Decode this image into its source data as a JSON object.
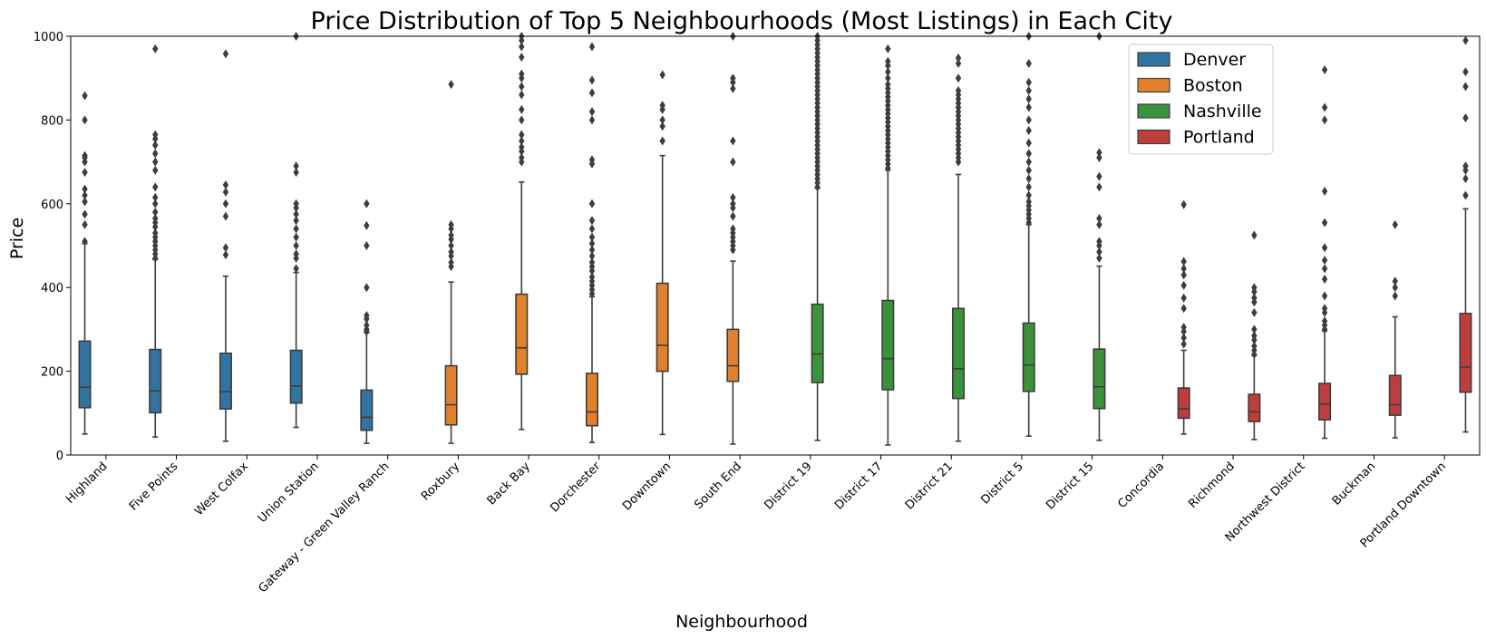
{
  "chart_data": {
    "type": "box",
    "title": "Price Distribution of Top 5 Neighbourhoods (Most Listings) in Each City",
    "xlabel": "Neighbourhood",
    "ylabel": "Price",
    "ylim": [
      0,
      1000
    ],
    "yticks": [
      0,
      200,
      400,
      600,
      800,
      1000
    ],
    "legend_position": "top-right",
    "series": [
      {
        "name": "Denver",
        "color": "#3274a1"
      },
      {
        "name": "Boston",
        "color": "#e1812c"
      },
      {
        "name": "Nashville",
        "color": "#3a923a"
      },
      {
        "name": "Portland",
        "color": "#c03d3e"
      }
    ],
    "categories": [
      "Highland",
      "Five Points",
      "West Colfax",
      "Union Station",
      "Gateway - Green Valley Ranch",
      "Roxbury",
      "Back Bay",
      "Dorchester",
      "Downtown",
      "South End",
      "District 19",
      "District 17",
      "District 21",
      "District 5",
      "District 15",
      "Concordia",
      "Richmond",
      "Northwest District",
      "Buckman",
      "Portland Downtown"
    ],
    "boxes": [
      {
        "category": "Highland",
        "series": "Denver",
        "whislo": 50,
        "q1": 113,
        "med": 162,
        "q3": 272,
        "whishi": 505,
        "fliers": [
          510,
          550,
          575,
          605,
          620,
          635,
          675,
          700,
          710,
          715,
          800,
          858
        ]
      },
      {
        "category": "Five Points",
        "series": "Denver",
        "whislo": 43,
        "q1": 101,
        "med": 153,
        "q3": 252,
        "whishi": 467,
        "fliers": [
          470,
          480,
          490,
          500,
          510,
          520,
          530,
          545,
          555,
          565,
          580,
          600,
          615,
          640,
          680,
          700,
          720,
          740,
          755,
          765,
          970
        ]
      },
      {
        "category": "West Colfax",
        "series": "Denver",
        "whislo": 33,
        "q1": 110,
        "med": 151,
        "q3": 243,
        "whishi": 427,
        "fliers": [
          478,
          495,
          570,
          600,
          628,
          645,
          958
        ]
      },
      {
        "category": "Union Station",
        "series": "Denver",
        "whislo": 66,
        "q1": 124,
        "med": 165,
        "q3": 250,
        "whishi": 436,
        "fliers": [
          445,
          470,
          480,
          500,
          520,
          540,
          560,
          575,
          590,
          600,
          675,
          690,
          1000
        ]
      },
      {
        "category": "Gateway - Green Valley Ranch",
        "series": "Denver",
        "whislo": 28,
        "q1": 59,
        "med": 90,
        "q3": 155,
        "whishi": 292,
        "fliers": [
          295,
          300,
          310,
          325,
          333,
          400,
          500,
          548,
          600
        ]
      },
      {
        "category": "Roxbury",
        "series": "Boston",
        "whislo": 28,
        "q1": 72,
        "med": 120,
        "q3": 213,
        "whishi": 413,
        "fliers": [
          450,
          460,
          475,
          485,
          500,
          515,
          525,
          540,
          550,
          885
        ]
      },
      {
        "category": "Back Bay",
        "series": "Boston",
        "whislo": 61,
        "q1": 193,
        "med": 256,
        "q3": 384,
        "whishi": 652,
        "fliers": [
          700,
          710,
          725,
          735,
          750,
          765,
          800,
          825,
          860,
          880,
          900,
          910,
          950,
          975,
          990,
          1000
        ]
      },
      {
        "category": "Dorchester",
        "series": "Boston",
        "whislo": 30,
        "q1": 70,
        "med": 103,
        "q3": 195,
        "whishi": 378,
        "fliers": [
          385,
          395,
          405,
          415,
          425,
          440,
          450,
          460,
          475,
          490,
          505,
          520,
          540,
          560,
          600,
          695,
          705,
          800,
          820,
          865,
          895,
          975
        ]
      },
      {
        "category": "Downtown",
        "series": "Boston",
        "whislo": 49,
        "q1": 200,
        "med": 262,
        "q3": 410,
        "whishi": 715,
        "fliers": [
          750,
          785,
          800,
          825,
          835,
          908
        ]
      },
      {
        "category": "South End",
        "series": "Boston",
        "whislo": 26,
        "q1": 176,
        "med": 213,
        "q3": 300,
        "whishi": 463,
        "fliers": [
          490,
          500,
          510,
          520,
          530,
          540,
          570,
          590,
          600,
          615,
          700,
          750,
          875,
          890,
          900,
          1000
        ]
      },
      {
        "category": "District 19",
        "series": "Nashville",
        "whislo": 35,
        "q1": 173,
        "med": 241,
        "q3": 360,
        "whishi": 637,
        "fliers": [
          640,
          650,
          660,
          670,
          680,
          690,
          700,
          710,
          720,
          730,
          740,
          750,
          760,
          770,
          780,
          790,
          800,
          810,
          820,
          830,
          840,
          850,
          860,
          870,
          880,
          890,
          900,
          910,
          920,
          930,
          940,
          950,
          960,
          970,
          980,
          990,
          1000
        ]
      },
      {
        "category": "District 17",
        "series": "Nashville",
        "whislo": 24,
        "q1": 156,
        "med": 230,
        "q3": 369,
        "whishi": 680,
        "fliers": [
          685,
          695,
          705,
          715,
          725,
          735,
          745,
          755,
          765,
          775,
          785,
          795,
          805,
          815,
          825,
          835,
          845,
          855,
          865,
          875,
          885,
          900,
          915,
          930,
          940,
          970
        ]
      },
      {
        "category": "District 21",
        "series": "Nashville",
        "whislo": 33,
        "q1": 135,
        "med": 206,
        "q3": 350,
        "whishi": 670,
        "fliers": [
          700,
          710,
          720,
          730,
          740,
          750,
          760,
          770,
          780,
          790,
          800,
          810,
          820,
          830,
          840,
          850,
          860,
          870,
          900,
          935,
          948
        ]
      },
      {
        "category": "District 5",
        "series": "Nashville",
        "whislo": 45,
        "q1": 152,
        "med": 215,
        "q3": 315,
        "whishi": 550,
        "fliers": [
          555,
          565,
          575,
          585,
          595,
          605,
          620,
          640,
          660,
          680,
          700,
          720,
          745,
          775,
          800,
          830,
          850,
          870,
          890,
          935,
          1000
        ]
      },
      {
        "category": "District 15",
        "series": "Nashville",
        "whislo": 35,
        "q1": 111,
        "med": 163,
        "q3": 253,
        "whishi": 451,
        "fliers": [
          470,
          485,
          500,
          510,
          550,
          565,
          640,
          665,
          710,
          722,
          1000
        ]
      },
      {
        "category": "Concordia",
        "series": "Portland",
        "whislo": 50,
        "q1": 88,
        "med": 110,
        "q3": 160,
        "whishi": 250,
        "fliers": [
          265,
          280,
          295,
          305,
          350,
          375,
          405,
          430,
          445,
          462,
          598
        ]
      },
      {
        "category": "Richmond",
        "series": "Portland",
        "whislo": 37,
        "q1": 80,
        "med": 103,
        "q3": 145,
        "whishi": 238,
        "fliers": [
          240,
          250,
          260,
          275,
          285,
          300,
          340,
          365,
          375,
          390,
          400,
          525
        ]
      },
      {
        "category": "Northwest District",
        "series": "Portland",
        "whislo": 40,
        "q1": 84,
        "med": 122,
        "q3": 171,
        "whishi": 296,
        "fliers": [
          300,
          310,
          320,
          340,
          350,
          380,
          420,
          445,
          465,
          495,
          555,
          630,
          800,
          830,
          920
        ]
      },
      {
        "category": "Buckman",
        "series": "Portland",
        "whislo": 41,
        "q1": 95,
        "med": 120,
        "q3": 190,
        "whishi": 330,
        "fliers": [
          380,
          400,
          415,
          550
        ]
      },
      {
        "category": "Portland Downtown",
        "series": "Portland",
        "whislo": 55,
        "q1": 150,
        "med": 210,
        "q3": 338,
        "whishi": 588,
        "fliers": [
          620,
          660,
          680,
          690,
          805,
          880,
          915,
          990
        ]
      }
    ]
  }
}
